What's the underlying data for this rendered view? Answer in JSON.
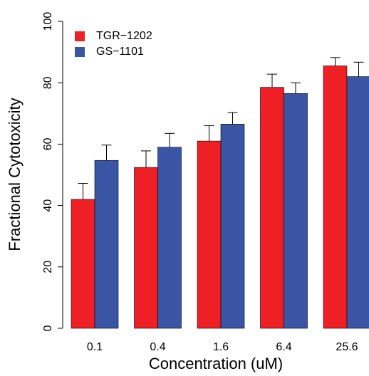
{
  "chart_data": {
    "type": "bar",
    "x_label": "Concentration (uM)",
    "y_label": "Fractional Cytotoxicity",
    "categories": [
      "0.1",
      "0.4",
      "1.6",
      "6.4",
      "25.6"
    ],
    "series": [
      {
        "name": "TGR−1202",
        "color": "#ee2025",
        "values": [
          42,
          52.4,
          61,
          78.5,
          85.5
        ],
        "errors": [
          5.2,
          5.4,
          5,
          4.3,
          2.7
        ]
      },
      {
        "name": "GS−1101",
        "color": "#3b55a5",
        "values": [
          54.7,
          59,
          66.5,
          76.5,
          82
        ],
        "errors": [
          5,
          4.5,
          3.8,
          3.5,
          4.7
        ]
      }
    ],
    "ylim": [
      0,
      100
    ],
    "yticks": [
      0,
      20,
      40,
      60,
      80,
      100
    ],
    "legend": "top-left"
  }
}
